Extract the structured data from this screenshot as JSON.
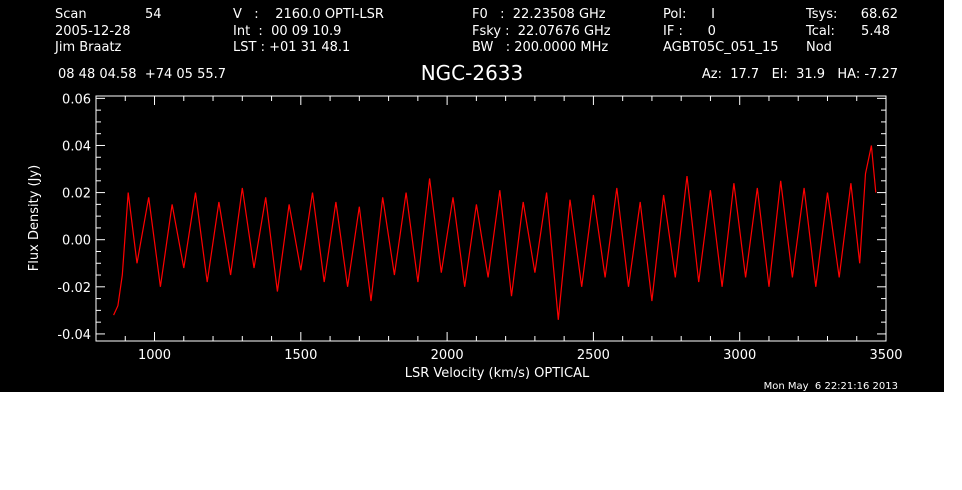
{
  "colors": {
    "background": "#000000",
    "foreground": "#ffffff",
    "series": "#ff0000"
  },
  "header": {
    "col1": [
      "Scan",
      "2005-12-28",
      "Jim Braatz"
    ],
    "scan_number": "54",
    "col2": [
      "V   :    2160.0 OPTI-LSR",
      "Int  :  00 09 10.9",
      "LST : +01 31 48.1"
    ],
    "col3": [
      "F0   :  22.23508 GHz",
      "Fsky :  22.07676 GHz",
      "BW   : 200.0000 MHz"
    ],
    "col4": [
      "Pol:      I",
      "IF :      0",
      "AGBT05C_051_15"
    ],
    "col5_labels": [
      "Tsys:",
      "Tcal:",
      "Nod"
    ],
    "col5_values": [
      "68.62",
      "5.48",
      ""
    ],
    "coords": "08 48 04.58  +74 05 55.7",
    "source": "NGC-2633",
    "pointing": "Az:  17.7   El:  31.9   HA: -7.27",
    "timestamp": "Mon May  6 22:21:16 2013"
  },
  "chart_data": {
    "type": "line",
    "title": "NGC-2633",
    "xlabel": "LSR Velocity (km/s) OPTICAL",
    "ylabel": "Flux Density (Jy)",
    "xlim": [
      800,
      3500
    ],
    "ylim": [
      -0.043,
      0.061
    ],
    "x_ticks": [
      1000,
      1500,
      2000,
      2500,
      3000,
      3500
    ],
    "x_tick_labels": [
      "1000",
      "1500",
      "2000",
      "2500",
      "3000",
      "3500"
    ],
    "y_ticks": [
      -0.04,
      -0.02,
      0.0,
      0.02,
      0.04,
      0.06
    ],
    "y_tick_labels": [
      "-0.04",
      "-0.02",
      "0.00",
      "0.02",
      "0.04",
      "0.06"
    ],
    "grid": false,
    "series": [
      {
        "color": "#ff0000",
        "x": [
          860,
          875,
          890,
          910,
          940,
          980,
          1020,
          1060,
          1100,
          1140,
          1180,
          1220,
          1260,
          1300,
          1340,
          1380,
          1420,
          1460,
          1500,
          1540,
          1580,
          1620,
          1660,
          1700,
          1740,
          1780,
          1820,
          1860,
          1900,
          1940,
          1980,
          2020,
          2060,
          2100,
          2140,
          2180,
          2220,
          2260,
          2300,
          2340,
          2380,
          2420,
          2460,
          2500,
          2540,
          2580,
          2620,
          2660,
          2700,
          2740,
          2780,
          2820,
          2860,
          2900,
          2940,
          2980,
          3020,
          3060,
          3100,
          3140,
          3180,
          3220,
          3260,
          3300,
          3340,
          3380,
          3410,
          3430,
          3450,
          3465
        ],
        "y": [
          -0.032,
          -0.028,
          -0.015,
          0.02,
          -0.01,
          0.018,
          -0.02,
          0.015,
          -0.012,
          0.02,
          -0.018,
          0.016,
          -0.015,
          0.022,
          -0.012,
          0.018,
          -0.022,
          0.015,
          -0.013,
          0.02,
          -0.018,
          0.016,
          -0.02,
          0.014,
          -0.026,
          0.018,
          -0.015,
          0.02,
          -0.018,
          0.026,
          -0.014,
          0.018,
          -0.02,
          0.015,
          -0.016,
          0.021,
          -0.024,
          0.016,
          -0.014,
          0.02,
          -0.034,
          0.017,
          -0.02,
          0.019,
          -0.016,
          0.022,
          -0.02,
          0.016,
          -0.026,
          0.019,
          -0.016,
          0.027,
          -0.018,
          0.021,
          -0.02,
          0.024,
          -0.016,
          0.022,
          -0.02,
          0.025,
          -0.016,
          0.022,
          -0.02,
          0.02,
          -0.016,
          0.024,
          -0.01,
          0.028,
          0.04,
          0.02
        ]
      }
    ]
  }
}
